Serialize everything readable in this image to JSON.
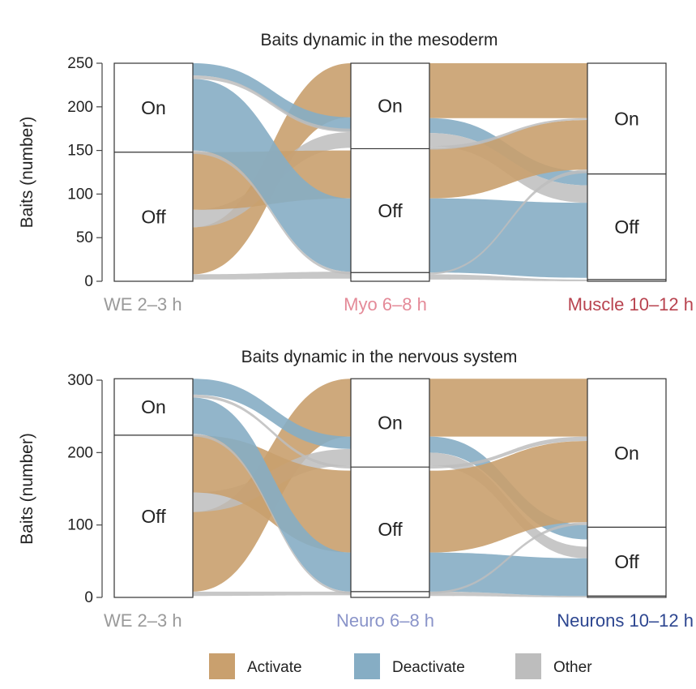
{
  "colors": {
    "activate": "#c9a06e",
    "deactivate": "#86adc4",
    "other": "#bdbdbd",
    "we_label": "#9a9a9a",
    "myo_label": "#e48a98",
    "muscle_label": "#b8434f",
    "neuro_label": "#8a94c9",
    "neurons_label": "#2d4690"
  },
  "legend": [
    {
      "label": "Activate",
      "color_key": "activate"
    },
    {
      "label": "Deactivate",
      "color_key": "deactivate"
    },
    {
      "label": "Other",
      "color_key": "other"
    }
  ],
  "chart_data": [
    {
      "type": "sankey",
      "title": "Baits dynamic in the mesoderm",
      "ylabel": "Baits (number)",
      "ylim": [
        0,
        250
      ],
      "yticks": [
        0,
        50,
        100,
        150,
        200,
        250
      ],
      "stages": [
        {
          "label": "WE 2–3 h",
          "color_key": "we_label",
          "nodes": [
            {
              "label": "",
              "from": 0,
              "to": 0
            },
            {
              "label": "Off",
              "from": 0,
              "to": 148
            },
            {
              "label": "On",
              "from": 148,
              "to": 250
            }
          ]
        },
        {
          "label": "Myo 6–8 h",
          "color_key": "myo_label",
          "nodes": [
            {
              "label": "",
              "from": 0,
              "to": 10
            },
            {
              "label": "Off",
              "from": 10,
              "to": 152
            },
            {
              "label": "On",
              "from": 152,
              "to": 250
            }
          ]
        },
        {
          "label": "Muscle 10–12 h",
          "color_key": "muscle_label",
          "nodes": [
            {
              "label": "",
              "from": 0,
              "to": 2
            },
            {
              "label": "Off",
              "from": 2,
              "to": 123
            },
            {
              "label": "On",
              "from": 123,
              "to": 250
            }
          ]
        }
      ],
      "flows": [
        {
          "from_stage": 0,
          "kind": "other",
          "y0": [
            8,
            2
          ],
          "y1": [
            11,
            3
          ]
        },
        {
          "from_stage": 0,
          "kind": "activate",
          "y0": [
            62,
            8
          ],
          "y1": [
            250,
            188
          ]
        },
        {
          "from_stage": 0,
          "kind": "other",
          "y0": [
            82,
            62
          ],
          "y1": [
            171,
            153
          ]
        },
        {
          "from_stage": 0,
          "kind": "activate",
          "y0": [
            148,
            82
          ],
          "y1": [
            150,
            95
          ]
        },
        {
          "from_stage": 0,
          "kind": "deactivate",
          "y0": [
            250,
            236
          ],
          "y1": [
            188,
            172
          ]
        },
        {
          "from_stage": 0,
          "kind": "other",
          "y0": [
            236,
            232
          ],
          "y1": [
            175,
            171
          ]
        },
        {
          "from_stage": 0,
          "kind": "deactivate",
          "y0": [
            232,
            150
          ],
          "y1": [
            95,
            11
          ]
        },
        {
          "from_stage": 0,
          "kind": "other",
          "y0": [
            150,
            146
          ],
          "y1": [
            11,
            8
          ]
        },
        {
          "from_stage": 1,
          "kind": "other",
          "y0": [
            8,
            2
          ],
          "y1": [
            2,
            0
          ]
        },
        {
          "from_stage": 1,
          "kind": "activate",
          "y0": [
            250,
            187
          ],
          "y1": [
            250,
            187
          ]
        },
        {
          "from_stage": 1,
          "kind": "deactivate",
          "y0": [
            187,
            170
          ],
          "y1": [
            126,
            110
          ]
        },
        {
          "from_stage": 1,
          "kind": "other",
          "y0": [
            170,
            155
          ],
          "y1": [
            110,
            90
          ]
        },
        {
          "from_stage": 1,
          "kind": "activate",
          "y0": [
            152,
            95
          ],
          "y1": [
            185,
            128
          ]
        },
        {
          "from_stage": 1,
          "kind": "deactivate",
          "y0": [
            95,
            10
          ],
          "y1": [
            90,
            4
          ]
        },
        {
          "from_stage": 1,
          "kind": "other",
          "y0": [
            155,
            151
          ],
          "y1": [
            187,
            185
          ]
        },
        {
          "from_stage": 1,
          "kind": "other",
          "y0": [
            10,
            8
          ],
          "y1": [
            128,
            124
          ]
        }
      ]
    },
    {
      "type": "sankey",
      "title": "Baits dynamic in the nervous system",
      "ylabel": "Baits (number)",
      "ylim": [
        0,
        300
      ],
      "yticks": [
        0,
        100,
        200,
        300
      ],
      "stages": [
        {
          "label": "WE 2–3 h",
          "color_key": "we_label",
          "nodes": [
            {
              "label": "",
              "from": 0,
              "to": 0
            },
            {
              "label": "Off",
              "from": 0,
              "to": 224
            },
            {
              "label": "On",
              "from": 224,
              "to": 302
            }
          ]
        },
        {
          "label": "Neuro 6–8 h",
          "color_key": "neuro_label",
          "nodes": [
            {
              "label": "",
              "from": 0,
              "to": 8
            },
            {
              "label": "Off",
              "from": 8,
              "to": 180
            },
            {
              "label": "On",
              "from": 180,
              "to": 302
            }
          ]
        },
        {
          "label": "Neurons 10–12 h",
          "color_key": "neurons_label",
          "nodes": [
            {
              "label": "",
              "from": 0,
              "to": 2
            },
            {
              "label": "Off",
              "from": 2,
              "to": 97
            },
            {
              "label": "On",
              "from": 97,
              "to": 302
            }
          ]
        }
      ],
      "flows": [
        {
          "from_stage": 0,
          "kind": "other",
          "y0": [
            8,
            2
          ],
          "y1": [
            8,
            3
          ]
        },
        {
          "from_stage": 0,
          "kind": "activate",
          "y0": [
            118,
            8
          ],
          "y1": [
            302,
            222
          ]
        },
        {
          "from_stage": 0,
          "kind": "other",
          "y0": [
            145,
            118
          ],
          "y1": [
            205,
            182
          ]
        },
        {
          "from_stage": 0,
          "kind": "activate",
          "y0": [
            224,
            145
          ],
          "y1": [
            175,
            62
          ]
        },
        {
          "from_stage": 0,
          "kind": "deactivate",
          "y0": [
            302,
            280
          ],
          "y1": [
            222,
            205
          ]
        },
        {
          "from_stage": 0,
          "kind": "other",
          "y0": [
            280,
            276
          ],
          "y1": [
            182,
            178
          ]
        },
        {
          "from_stage": 0,
          "kind": "deactivate",
          "y0": [
            276,
            226
          ],
          "y1": [
            62,
            8
          ]
        },
        {
          "from_stage": 0,
          "kind": "other",
          "y0": [
            226,
            222
          ],
          "y1": [
            8,
            5
          ]
        },
        {
          "from_stage": 1,
          "kind": "other",
          "y0": [
            8,
            2
          ],
          "y1": [
            2,
            0
          ]
        },
        {
          "from_stage": 1,
          "kind": "activate",
          "y0": [
            302,
            222
          ],
          "y1": [
            302,
            222
          ]
        },
        {
          "from_stage": 1,
          "kind": "deactivate",
          "y0": [
            222,
            200
          ],
          "y1": [
            100,
            80
          ]
        },
        {
          "from_stage": 1,
          "kind": "other",
          "y0": [
            200,
            182
          ],
          "y1": [
            70,
            54
          ]
        },
        {
          "from_stage": 1,
          "kind": "activate",
          "y0": [
            175,
            62
          ],
          "y1": [
            216,
            104
          ]
        },
        {
          "from_stage": 1,
          "kind": "deactivate",
          "y0": [
            62,
            8
          ],
          "y1": [
            54,
            2
          ]
        },
        {
          "from_stage": 1,
          "kind": "other",
          "y0": [
            182,
            178
          ],
          "y1": [
            222,
            216
          ]
        },
        {
          "from_stage": 1,
          "kind": "other",
          "y0": [
            8,
            5
          ],
          "y1": [
            104,
            100
          ]
        }
      ]
    }
  ]
}
